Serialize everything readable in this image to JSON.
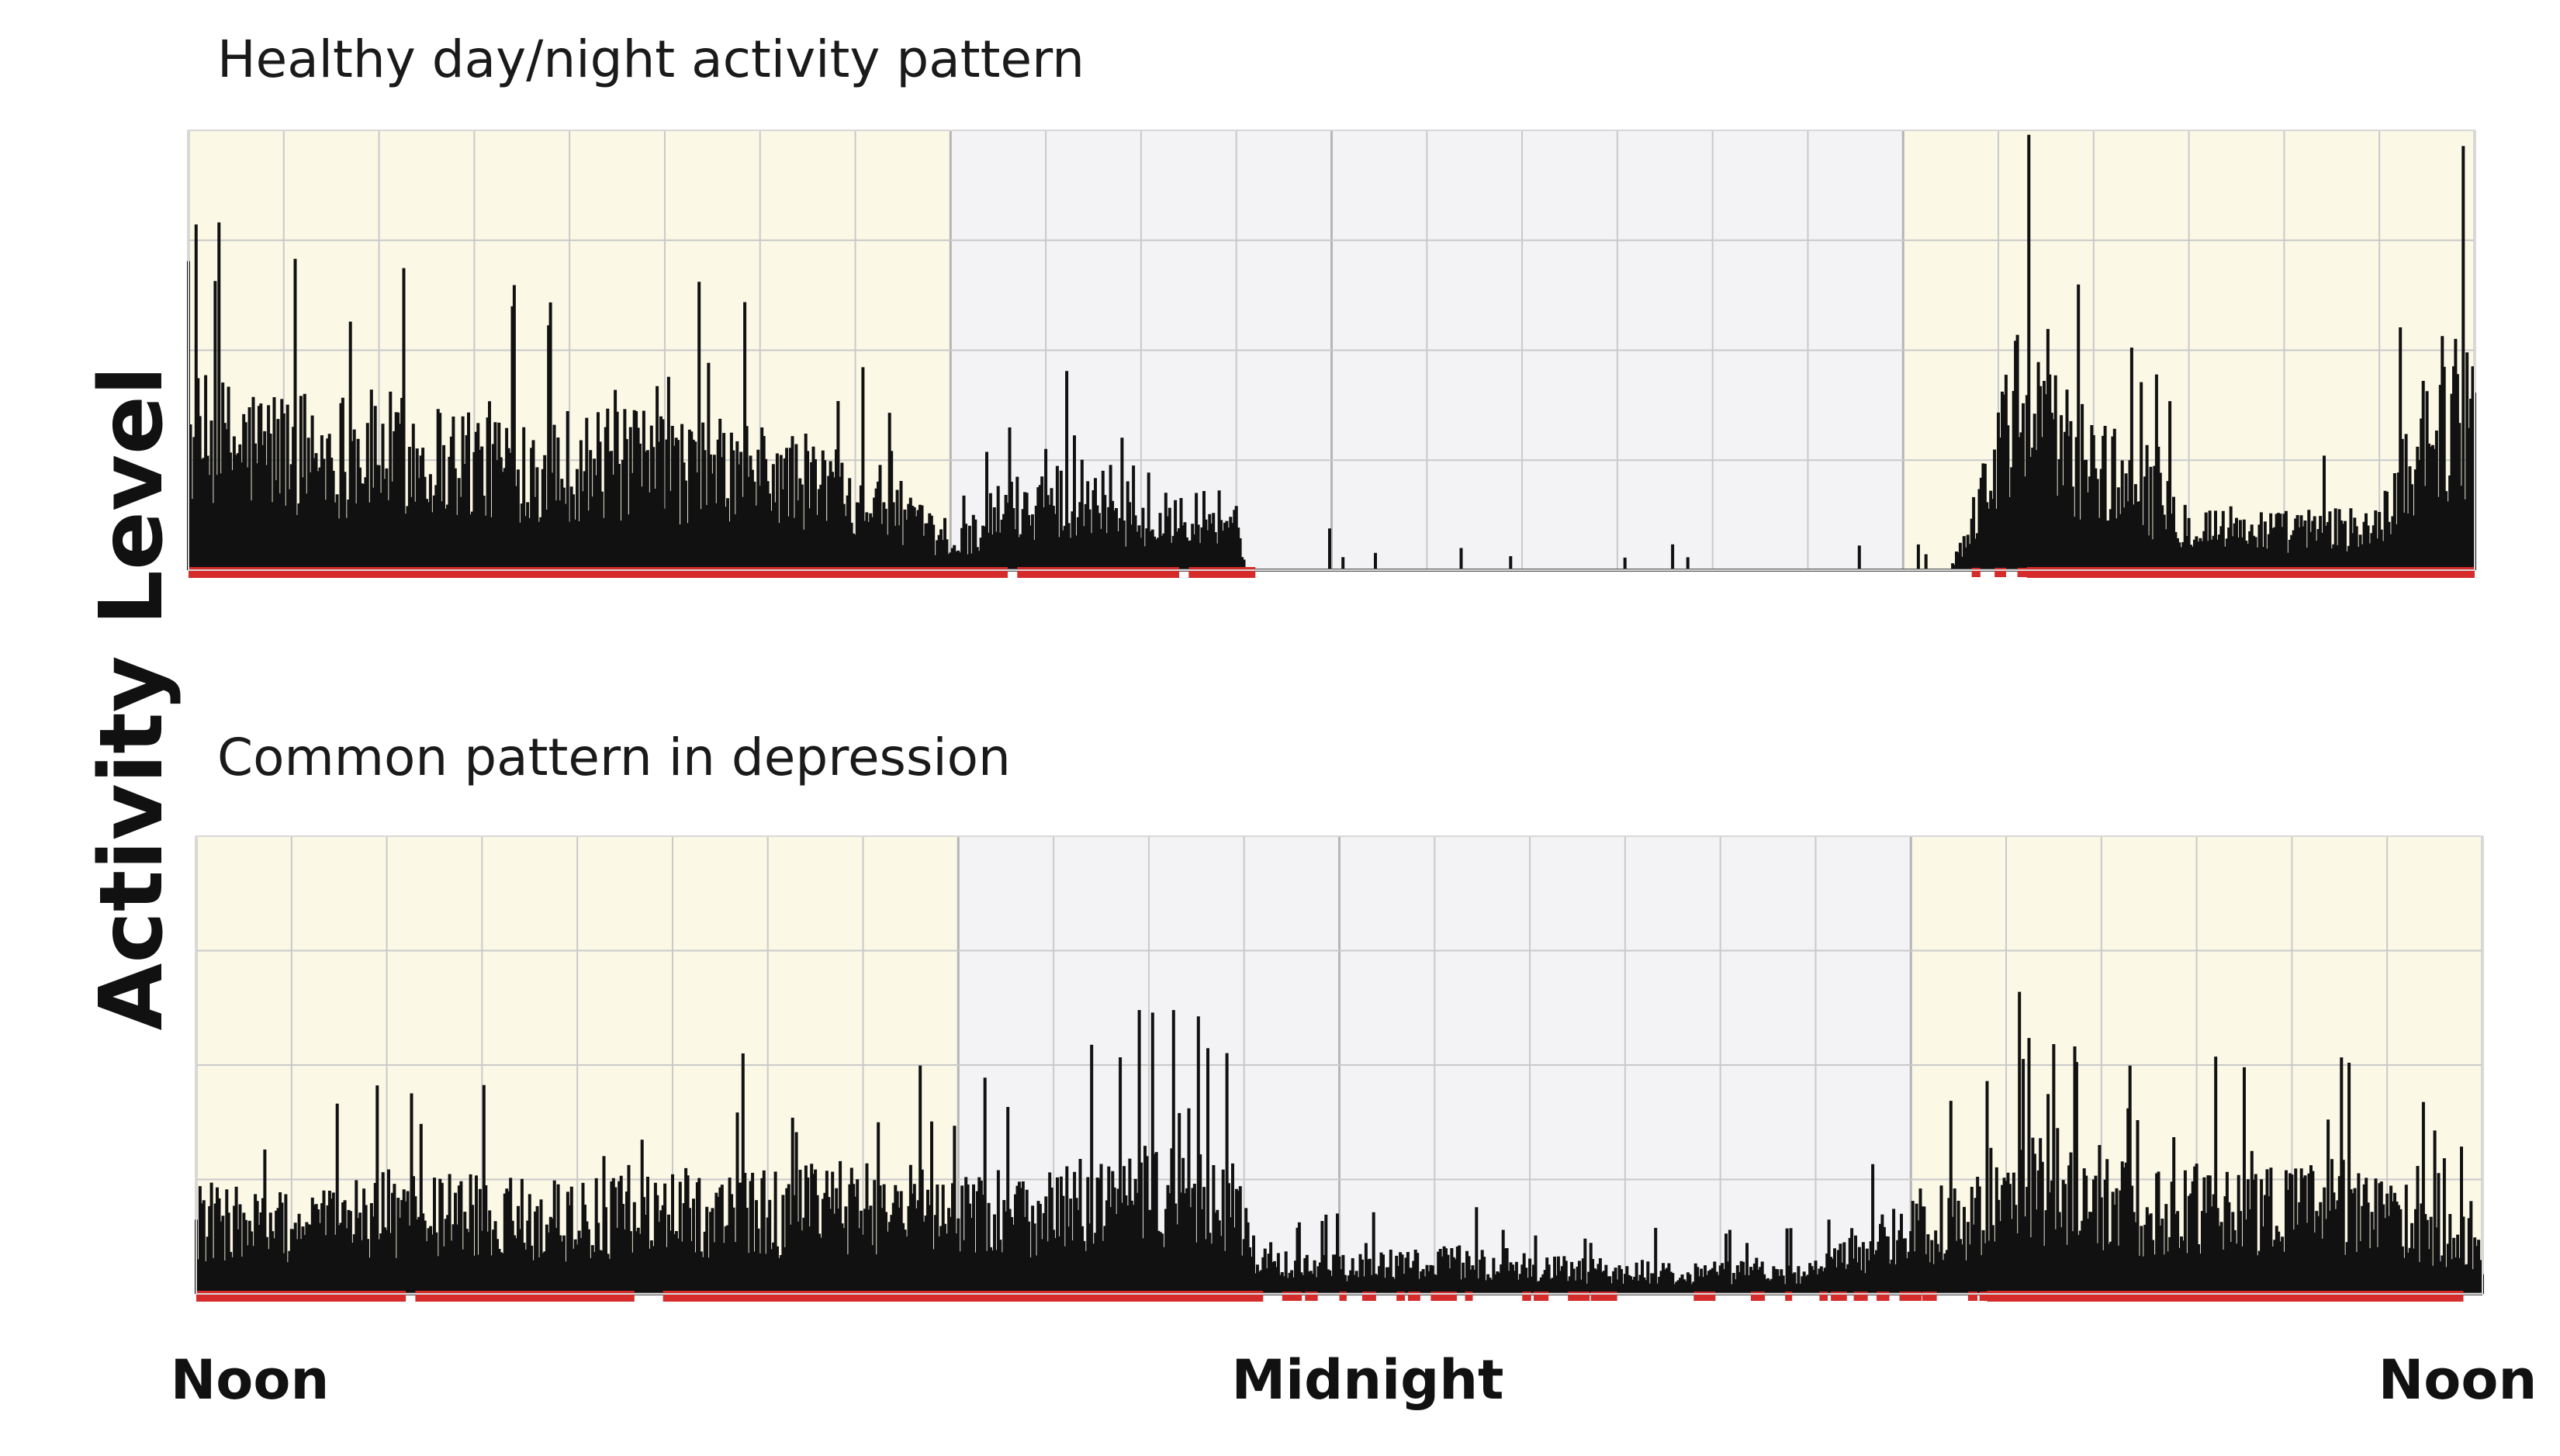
{
  "ylabel": "Activity Level",
  "xticks": [
    "Noon",
    "Midnight",
    "Noon"
  ],
  "colors": {
    "day_shading": "#fbf8e6",
    "night_shading": "#f3f3f5",
    "bars": "#111111",
    "activity_marker": "#d62b2b",
    "grid": "#c9c9c9",
    "baseline": "#555555"
  },
  "chart_data": [
    {
      "type": "bar",
      "title": "Healthy day/night activity pattern",
      "xlabel": "",
      "ylabel": "Activity Level",
      "xlim_hours": [
        0,
        24
      ],
      "x_ticks": [
        {
          "hour": 0,
          "label": "Noon"
        },
        {
          "hour": 11,
          "label": "Midnight"
        },
        {
          "hour": 24,
          "label": "Noon"
        }
      ],
      "day_periods_hours": [
        [
          0,
          8
        ],
        [
          18,
          24
        ]
      ],
      "night_period_hours": [
        8,
        18
      ],
      "ylim": [
        0,
        1
      ],
      "grid": true,
      "activity_profile": [
        {
          "hour": 0,
          "level": 0.36
        },
        {
          "hour": 1,
          "level": 0.34
        },
        {
          "hour": 2,
          "level": 0.33
        },
        {
          "hour": 3,
          "level": 0.31
        },
        {
          "hour": 4,
          "level": 0.3
        },
        {
          "hour": 5,
          "level": 0.29
        },
        {
          "hour": 6,
          "level": 0.27
        },
        {
          "hour": 7,
          "level": 0.23
        },
        {
          "hour": 7.5,
          "level": 0.16
        },
        {
          "hour": 8,
          "level": 0.06
        },
        {
          "hour": 8.5,
          "level": 0.16
        },
        {
          "hour": 9,
          "level": 0.2
        },
        {
          "hour": 9.6,
          "level": 0.22
        },
        {
          "hour": 10,
          "level": 0.1
        },
        {
          "hour": 10.5,
          "level": 0.18
        },
        {
          "hour": 11,
          "level": 0.14
        },
        {
          "hour": 11.1,
          "level": 0.0
        },
        {
          "hour": 17.9,
          "level": 0.0
        },
        {
          "hour": 18.5,
          "level": 0.0
        },
        {
          "hour": 19.2,
          "level": 0.44
        },
        {
          "hour": 20,
          "level": 0.3
        },
        {
          "hour": 21,
          "level": 0.13
        },
        {
          "hour": 22,
          "level": 0.11
        },
        {
          "hour": 23,
          "level": 0.12
        },
        {
          "hour": 23.5,
          "level": 0.42
        },
        {
          "hour": 24,
          "level": 0.46
        }
      ],
      "active_hours": [
        [
          0,
          8.6
        ],
        [
          8.7,
          10.4
        ],
        [
          10.5,
          11.2
        ],
        [
          19.3,
          24
        ]
      ]
    },
    {
      "type": "bar",
      "title": "Common pattern in depression",
      "xlabel": "",
      "ylabel": "Activity Level",
      "xlim_hours": [
        0,
        24
      ],
      "x_ticks": [
        {
          "hour": 0,
          "label": "Noon"
        },
        {
          "hour": 11,
          "label": "Midnight"
        },
        {
          "hour": 24,
          "label": "Noon"
        }
      ],
      "day_periods_hours": [
        [
          0,
          8
        ],
        [
          18,
          24
        ]
      ],
      "night_period_hours": [
        8,
        18
      ],
      "ylim": [
        0,
        1
      ],
      "grid": true,
      "activity_profile": [
        {
          "hour": 0,
          "level": 0.2
        },
        {
          "hour": 1,
          "level": 0.18
        },
        {
          "hour": 2,
          "level": 0.22
        },
        {
          "hour": 3,
          "level": 0.21
        },
        {
          "hour": 4,
          "level": 0.2
        },
        {
          "hour": 5,
          "level": 0.22
        },
        {
          "hour": 6,
          "level": 0.22
        },
        {
          "hour": 7,
          "level": 0.24
        },
        {
          "hour": 8,
          "level": 0.22
        },
        {
          "hour": 9,
          "level": 0.23
        },
        {
          "hour": 10,
          "level": 0.27
        },
        {
          "hour": 10.9,
          "level": 0.24
        },
        {
          "hour": 11.2,
          "level": 0.08
        },
        {
          "hour": 12,
          "level": 0.07
        },
        {
          "hour": 13,
          "level": 0.09
        },
        {
          "hour": 14,
          "level": 0.07
        },
        {
          "hour": 15,
          "level": 0.06
        },
        {
          "hour": 16,
          "level": 0.06
        },
        {
          "hour": 17,
          "level": 0.06
        },
        {
          "hour": 17.8,
          "level": 0.16
        },
        {
          "hour": 18.5,
          "level": 0.2
        },
        {
          "hour": 19.5,
          "level": 0.3
        },
        {
          "hour": 20.5,
          "level": 0.22
        },
        {
          "hour": 21.5,
          "level": 0.24
        },
        {
          "hour": 22.5,
          "level": 0.24
        },
        {
          "hour": 23.5,
          "level": 0.17
        },
        {
          "hour": 24,
          "level": 0.12
        }
      ],
      "active_hours": [
        [
          0,
          2.2
        ],
        [
          2.3,
          4.6
        ],
        [
          4.9,
          11.2
        ],
        [
          18.8,
          23.8
        ]
      ]
    }
  ]
}
